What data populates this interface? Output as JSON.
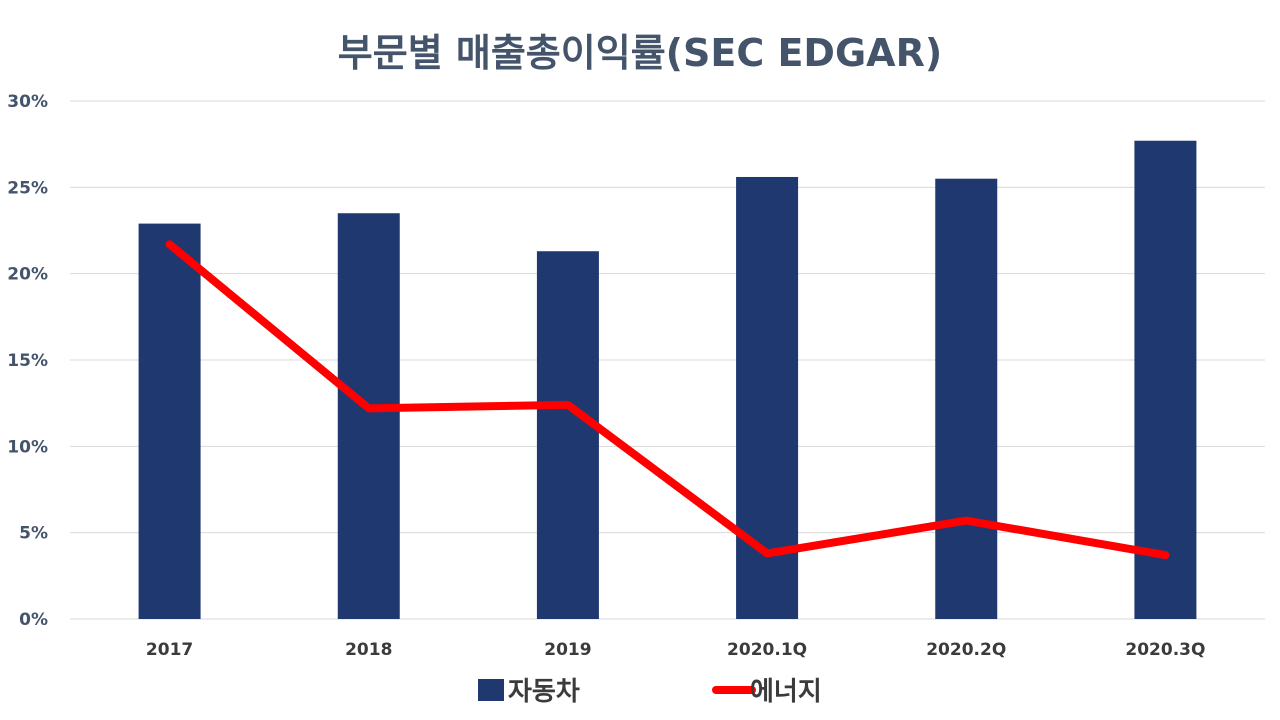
{
  "chart_data": {
    "type": "bar",
    "title": "부문별 매출총이익률(SEC EDGAR)",
    "categories": [
      "2017",
      "2018",
      "2019",
      "2020.1Q",
      "2020.2Q",
      "2020.3Q"
    ],
    "series": [
      {
        "name": "자동차",
        "type": "bar",
        "color": "#1f3870",
        "values": [
          22.9,
          23.5,
          21.3,
          25.6,
          25.5,
          27.7
        ]
      },
      {
        "name": "에너지",
        "type": "line",
        "color": "#ff0000",
        "values": [
          21.7,
          12.2,
          12.4,
          3.8,
          5.7,
          3.7
        ]
      }
    ],
    "ylim": [
      0,
      30
    ],
    "yticks": [
      "0%",
      "5%",
      "10%",
      "15%",
      "20%",
      "25%",
      "30%"
    ],
    "ytick_values": [
      0,
      5,
      10,
      15,
      20,
      25,
      30
    ],
    "grid": true,
    "legend": "bottom"
  }
}
